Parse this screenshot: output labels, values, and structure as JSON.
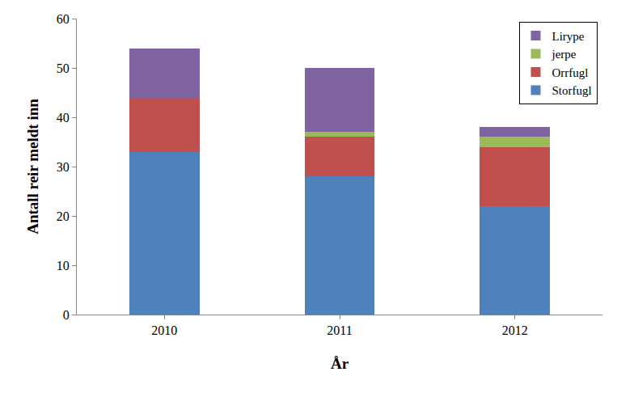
{
  "chart_data": {
    "type": "bar",
    "stacked": true,
    "x_label": "År",
    "y_label": "Antall reir meldt inn",
    "categories": [
      "2010",
      "2011",
      "2012"
    ],
    "series": [
      {
        "name": "Storfugl",
        "color": "#4f81bd",
        "values": [
          33,
          28,
          22
        ]
      },
      {
        "name": "Orrfugl",
        "color": "#c0504d",
        "values": [
          11,
          8,
          12
        ]
      },
      {
        "name": "jerpe",
        "color": "#9bbb59",
        "values": [
          0,
          1,
          2
        ]
      },
      {
        "name": "Lirype",
        "color": "#8064a2",
        "values": [
          10,
          13,
          2
        ]
      }
    ],
    "ylim": [
      0,
      60
    ],
    "yticks": [
      0,
      10,
      20,
      30,
      40,
      50,
      60
    ],
    "grid": false,
    "legend": "top-right"
  }
}
